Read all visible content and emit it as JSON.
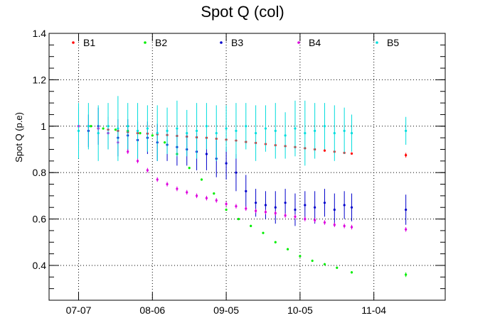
{
  "chart_data": {
    "type": "scatter",
    "title": "Spot Q (col)",
    "xlabel": "",
    "ylabel": "Spot Q (p.e)",
    "x_is_date": true,
    "xlim": [
      "2019-06-25",
      "2019-12-03"
    ],
    "ylim": [
      0.25,
      1.4
    ],
    "x_ticks": [
      {
        "date": "2019-07-07",
        "label": "07-07"
      },
      {
        "date": "2019-08-06",
        "label": "08-06"
      },
      {
        "date": "2019-09-05",
        "label": "09-05"
      },
      {
        "date": "2019-10-05",
        "label": "10-05"
      },
      {
        "date": "2019-11-04",
        "label": "11-04"
      }
    ],
    "y_ticks": [
      {
        "value": 0.4,
        "label": "0.4"
      },
      {
        "value": 0.6,
        "label": "0.6"
      },
      {
        "value": 0.8,
        "label": "0.8"
      },
      {
        "value": 1.0,
        "label": "1"
      },
      {
        "value": 1.2,
        "label": "1.2"
      },
      {
        "value": 1.4,
        "label": "1.4"
      }
    ],
    "grid": true,
    "legend_position": "top",
    "series": [
      {
        "name": "B1",
        "color": "#ff0000",
        "x": [
          "2019-07-07",
          "2019-07-11",
          "2019-07-15",
          "2019-07-19",
          "2019-07-23",
          "2019-07-27",
          "2019-07-31",
          "2019-08-04",
          "2019-08-08",
          "2019-08-12",
          "2019-08-16",
          "2019-08-20",
          "2019-08-24",
          "2019-08-28",
          "2019-09-01",
          "2019-09-05",
          "2019-09-09",
          "2019-09-13",
          "2019-09-17",
          "2019-09-21",
          "2019-09-25",
          "2019-09-29",
          "2019-10-03",
          "2019-10-07",
          "2019-10-11",
          "2019-10-15",
          "2019-10-19",
          "2019-10-23",
          "2019-10-26",
          "2019-11-17"
        ],
        "y": [
          1.0,
          1.0,
          0.99,
          0.985,
          0.98,
          0.975,
          0.97,
          0.968,
          0.965,
          0.962,
          0.958,
          0.955,
          0.952,
          0.95,
          0.946,
          0.942,
          0.938,
          0.932,
          0.928,
          0.923,
          0.918,
          0.914,
          0.91,
          0.905,
          0.9,
          0.895,
          0.89,
          0.885,
          0.882,
          0.875
        ],
        "err": [
          0.005,
          0.005,
          0.005,
          0.005,
          0.005,
          0.005,
          0.005,
          0.005,
          0.005,
          0.005,
          0.005,
          0.005,
          0.005,
          0.005,
          0.005,
          0.005,
          0.005,
          0.005,
          0.005,
          0.005,
          0.005,
          0.005,
          0.005,
          0.005,
          0.005,
          0.005,
          0.005,
          0.005,
          0.005,
          0.01
        ]
      },
      {
        "name": "B2",
        "color": "#00ee00",
        "x": [
          "2019-07-07",
          "2019-07-12",
          "2019-07-17",
          "2019-07-22",
          "2019-07-27",
          "2019-08-01",
          "2019-08-06",
          "2019-08-11",
          "2019-08-16",
          "2019-08-21",
          "2019-08-26",
          "2019-08-31",
          "2019-09-05",
          "2019-09-10",
          "2019-09-15",
          "2019-09-20",
          "2019-09-25",
          "2019-09-30",
          "2019-10-05",
          "2019-10-10",
          "2019-10-15",
          "2019-10-20",
          "2019-10-26",
          "2019-11-17"
        ],
        "y": [
          1.0,
          1.0,
          0.99,
          0.985,
          0.98,
          0.97,
          0.96,
          0.93,
          0.88,
          0.82,
          0.77,
          0.71,
          0.64,
          0.6,
          0.57,
          0.54,
          0.5,
          0.47,
          0.44,
          0.42,
          0.405,
          0.39,
          0.37,
          0.36
        ],
        "err": [
          0.005,
          0.005,
          0.005,
          0.005,
          0.005,
          0.005,
          0.005,
          0.005,
          0.005,
          0.005,
          0.005,
          0.005,
          0.005,
          0.005,
          0.005,
          0.005,
          0.005,
          0.005,
          0.005,
          0.005,
          0.005,
          0.005,
          0.005,
          0.01
        ]
      },
      {
        "name": "B3",
        "color": "#0000cc",
        "x": [
          "2019-07-07",
          "2019-07-11",
          "2019-07-15",
          "2019-07-19",
          "2019-07-23",
          "2019-07-27",
          "2019-07-31",
          "2019-08-04",
          "2019-08-08",
          "2019-08-12",
          "2019-08-16",
          "2019-08-20",
          "2019-08-24",
          "2019-08-28",
          "2019-09-01",
          "2019-09-05",
          "2019-09-09",
          "2019-09-13",
          "2019-09-17",
          "2019-09-21",
          "2019-09-25",
          "2019-09-29",
          "2019-10-03",
          "2019-10-07",
          "2019-10-11",
          "2019-10-15",
          "2019-10-19",
          "2019-10-23",
          "2019-10-26",
          "2019-11-17"
        ],
        "y": [
          1.0,
          0.98,
          1.0,
          0.97,
          0.95,
          0.96,
          0.94,
          0.95,
          0.93,
          0.92,
          0.91,
          0.9,
          0.89,
          0.88,
          0.86,
          0.84,
          0.8,
          0.72,
          0.67,
          0.66,
          0.65,
          0.67,
          0.64,
          0.66,
          0.65,
          0.67,
          0.64,
          0.66,
          0.65,
          0.64
        ],
        "err": [
          0.08,
          0.07,
          0.08,
          0.07,
          0.08,
          0.07,
          0.08,
          0.07,
          0.08,
          0.07,
          0.08,
          0.07,
          0.08,
          0.07,
          0.08,
          0.07,
          0.08,
          0.07,
          0.06,
          0.06,
          0.07,
          0.06,
          0.07,
          0.06,
          0.07,
          0.06,
          0.07,
          0.06,
          0.06,
          0.065
        ]
      },
      {
        "name": "B4",
        "color": "#dd00dd",
        "x": [
          "2019-07-07",
          "2019-07-11",
          "2019-07-15",
          "2019-07-19",
          "2019-07-23",
          "2019-07-27",
          "2019-07-31",
          "2019-08-04",
          "2019-08-08",
          "2019-08-12",
          "2019-08-16",
          "2019-08-20",
          "2019-08-24",
          "2019-08-28",
          "2019-09-01",
          "2019-09-05",
          "2019-09-09",
          "2019-09-13",
          "2019-09-17",
          "2019-09-21",
          "2019-09-25",
          "2019-09-29",
          "2019-10-03",
          "2019-10-07",
          "2019-10-11",
          "2019-10-15",
          "2019-10-19",
          "2019-10-23",
          "2019-10-26",
          "2019-11-17"
        ],
        "y": [
          1.0,
          1.0,
          0.99,
          0.97,
          0.93,
          0.89,
          0.85,
          0.81,
          0.77,
          0.75,
          0.73,
          0.715,
          0.7,
          0.69,
          0.68,
          0.665,
          0.655,
          0.645,
          0.635,
          0.63,
          0.625,
          0.615,
          0.61,
          0.6,
          0.595,
          0.585,
          0.575,
          0.57,
          0.565,
          0.555
        ],
        "err": [
          0.01,
          0.01,
          0.01,
          0.01,
          0.01,
          0.01,
          0.01,
          0.01,
          0.01,
          0.01,
          0.01,
          0.01,
          0.01,
          0.01,
          0.01,
          0.01,
          0.01,
          0.01,
          0.01,
          0.01,
          0.01,
          0.01,
          0.01,
          0.01,
          0.01,
          0.01,
          0.01,
          0.01,
          0.01,
          0.01
        ]
      },
      {
        "name": "B5",
        "color": "#00dddd",
        "x": [
          "2019-07-07",
          "2019-07-11",
          "2019-07-15",
          "2019-07-19",
          "2019-07-23",
          "2019-07-27",
          "2019-07-31",
          "2019-08-04",
          "2019-08-08",
          "2019-08-12",
          "2019-08-16",
          "2019-08-20",
          "2019-08-24",
          "2019-08-28",
          "2019-09-01",
          "2019-09-05",
          "2019-09-09",
          "2019-09-13",
          "2019-09-17",
          "2019-09-21",
          "2019-09-25",
          "2019-09-29",
          "2019-10-03",
          "2019-10-07",
          "2019-10-11",
          "2019-10-15",
          "2019-10-19",
          "2019-10-23",
          "2019-10-26",
          "2019-11-17"
        ],
        "y": [
          0.98,
          1.0,
          0.97,
          1.0,
          0.99,
          1.0,
          0.98,
          0.99,
          0.97,
          0.98,
          0.99,
          0.97,
          0.98,
          1.0,
          0.97,
          0.99,
          0.98,
          1.0,
          0.97,
          0.99,
          0.98,
          0.96,
          0.99,
          0.97,
          0.98,
          1.0,
          0.97,
          0.98,
          0.97,
          0.98
        ],
        "err": [
          0.12,
          0.1,
          0.12,
          0.1,
          0.14,
          0.1,
          0.12,
          0.1,
          0.12,
          0.1,
          0.12,
          0.1,
          0.12,
          0.1,
          0.12,
          0.1,
          0.12,
          0.1,
          0.12,
          0.1,
          0.12,
          0.1,
          0.12,
          0.14,
          0.12,
          0.1,
          0.12,
          0.1,
          0.08,
          0.06
        ]
      }
    ]
  }
}
